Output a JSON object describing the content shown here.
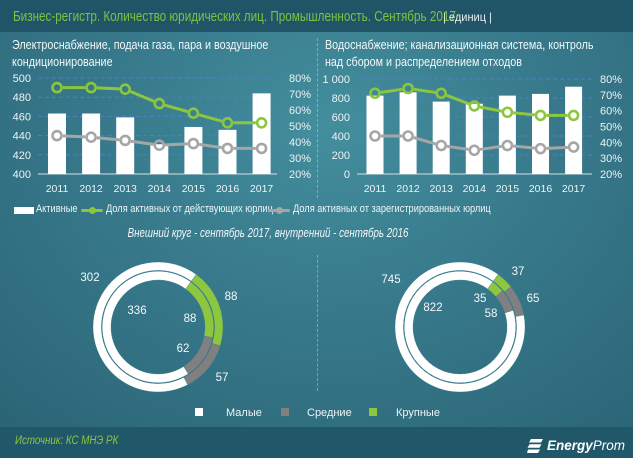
{
  "header": {
    "title": "Бизнес-регистр. Количество юридических лиц. Промышленность. Сентябрь 2017",
    "unit": "| единиц |"
  },
  "legend": {
    "items": [
      {
        "label": "Активные",
        "kind": "bar",
        "color": "#ffffff"
      },
      {
        "label": "Доля активных от действующих юрлиц",
        "kind": "line",
        "color": "#8cc63f"
      },
      {
        "label": "Доля активных от зарегистрированных юрлиц",
        "kind": "line",
        "color": "#a6a6a6"
      }
    ]
  },
  "donut_subtitle": "Внешний круг - сентябрь 2017, внутренний - сентябрь 2016",
  "donut_legend": {
    "items": [
      {
        "label": "Малые",
        "color": "#ffffff"
      },
      {
        "label": "Средние",
        "color": "#808080"
      },
      {
        "label": "Крупные",
        "color": "#8dc63f"
      }
    ]
  },
  "footer": {
    "source": "Источник: КС МНЭ РК",
    "logo_bold": "Energy",
    "logo_light": "Prom",
    "logo_icon": "energyprom-logo-icon"
  },
  "colors": {
    "header_title": "#7dc243",
    "bar": "#ffffff",
    "line_active_share": "#8cc63f",
    "line_registered_share": "#a6a6a6",
    "grid": "#4d80c3",
    "donut_small": "#ffffff",
    "donut_medium": "#808080",
    "donut_large": "#8dc63f"
  },
  "chart_data": [
    {
      "type": "bar",
      "title": "Электроснабжение, подача газа, пара и воздушное кондиционирование",
      "title_lines": [
        "Электроснабжение, подача газа, пара и воздушное",
        "кондиционирование"
      ],
      "categories": [
        "2011",
        "2012",
        "2013",
        "2014",
        "2015",
        "2016",
        "2017"
      ],
      "series": [
        {
          "name": "Активные",
          "type": "bar",
          "axis": "left",
          "values": [
            463,
            463,
            459,
            431,
            449,
            446,
            484
          ]
        },
        {
          "name": "Доля активных от действующих юрлиц",
          "type": "line",
          "axis": "right",
          "unit": "%",
          "values": [
            74,
            74,
            73,
            64,
            58,
            52,
            52
          ]
        },
        {
          "name": "Доля активных от зарегистрированных юрлиц",
          "type": "line",
          "axis": "right",
          "unit": "%",
          "values": [
            44,
            43,
            41,
            38,
            39,
            36,
            36
          ]
        }
      ],
      "ylim": [
        400,
        500
      ],
      "yticks": [
        400,
        420,
        440,
        460,
        480,
        500
      ],
      "ytick_labels": [
        "400",
        "420",
        "440",
        "460",
        "480",
        "500"
      ],
      "y2lim": [
        20,
        80
      ],
      "y2ticks": [
        20,
        30,
        40,
        50,
        60,
        70,
        80
      ],
      "y2tick_labels": [
        "20%",
        "30%",
        "40%",
        "50%",
        "60%",
        "70%",
        "80%"
      ],
      "grid": true,
      "legend": "bottom"
    },
    {
      "type": "bar",
      "title": "Водоснабжение; канализационная система, контроль над сбором и распределением отходов",
      "title_lines": [
        "Водоснабжение; канализационная система, контроль",
        "над сбором  и распределением отходов"
      ],
      "categories": [
        "2011",
        "2012",
        "2013",
        "2014",
        "2015",
        "2016",
        "2017"
      ],
      "series": [
        {
          "name": "Активные",
          "type": "bar",
          "axis": "left",
          "values": [
            825,
            860,
            762,
            740,
            825,
            843,
            919
          ]
        },
        {
          "name": "Доля активных от действующих юрлиц",
          "type": "line",
          "axis": "right",
          "unit": "%",
          "values": [
            71,
            74,
            71,
            63,
            59,
            57,
            57
          ]
        },
        {
          "name": "Доля активных от зарегистрированных юрлиц",
          "type": "line",
          "axis": "right",
          "unit": "%",
          "values": [
            44,
            44,
            38,
            35,
            38,
            36,
            37
          ]
        }
      ],
      "ylim": [
        0,
        1000
      ],
      "yticks": [
        0,
        200,
        400,
        600,
        800,
        1000
      ],
      "ytick_labels": [
        "0",
        "200",
        "400",
        "600",
        "800",
        "1 000"
      ],
      "y2lim": [
        20,
        80
      ],
      "y2ticks": [
        20,
        30,
        40,
        50,
        60,
        70,
        80
      ],
      "y2tick_labels": [
        "20%",
        "30%",
        "40%",
        "50%",
        "60%",
        "70%",
        "80%"
      ],
      "grid": true,
      "legend": "bottom"
    },
    {
      "type": "pie",
      "variant": "doughnut",
      "categories": [
        "Малые",
        "Средние",
        "Крупные"
      ],
      "rings": [
        {
          "name": "сентябрь 2017",
          "position": "outer",
          "values": [
            302,
            57,
            88
          ]
        },
        {
          "name": "сентябрь 2016",
          "position": "inner",
          "values": [
            336,
            62,
            88
          ]
        }
      ]
    },
    {
      "type": "pie",
      "variant": "doughnut",
      "categories": [
        "Малые",
        "Средние",
        "Крупные"
      ],
      "rings": [
        {
          "name": "сентябрь 2017",
          "position": "outer",
          "values": [
            745,
            65,
            37
          ]
        },
        {
          "name": "сентябрь 2016",
          "position": "inner",
          "values": [
            822,
            58,
            35
          ]
        }
      ]
    }
  ]
}
